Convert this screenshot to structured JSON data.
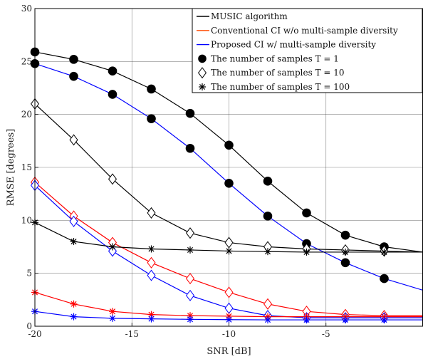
{
  "chart_data": {
    "type": "line",
    "xlabel": "SNR [dB]",
    "ylabel": "RMSE [degrees]",
    "xlim": [
      -20,
      0
    ],
    "ylim": [
      0,
      30
    ],
    "xticks": [
      -20,
      -15,
      -10,
      -5
    ],
    "yticks": [
      0,
      5,
      10,
      15,
      20,
      25,
      30
    ],
    "grid": true,
    "legend_position": "top-right",
    "x": [
      -20,
      -18,
      -16,
      -14,
      -12,
      -10,
      -8,
      -6,
      -4,
      -2,
      0
    ],
    "series": [
      {
        "method": "MUSIC algorithm",
        "samples": "T = 1",
        "color": "#000000",
        "values": [
          25.9,
          25.2,
          24.1,
          22.4,
          20.1,
          17.1,
          13.7,
          10.7,
          8.6,
          7.5,
          7.0
        ]
      },
      {
        "method": "Proposed CI w/ multi-sample diversity",
        "samples": "T = 1",
        "color": "#0000ff",
        "values": [
          24.8,
          23.6,
          21.9,
          19.6,
          16.8,
          13.5,
          10.4,
          7.8,
          6.0,
          4.5,
          3.4
        ]
      },
      {
        "method": "MUSIC algorithm",
        "samples": "T = 10",
        "color": "#000000",
        "values": [
          21.0,
          17.6,
          13.9,
          10.7,
          8.8,
          7.9,
          7.5,
          7.3,
          7.2,
          7.1,
          7.0
        ]
      },
      {
        "method": "Conventional CI w/o multi-sample diversity",
        "samples": "T = 10",
        "color": "#ff0000",
        "values": [
          13.6,
          10.4,
          7.9,
          6.0,
          4.5,
          3.2,
          2.1,
          1.4,
          1.1,
          1.0,
          1.0
        ]
      },
      {
        "method": "Proposed CI w/ multi-sample diversity",
        "samples": "T = 10",
        "color": "#0000ff",
        "values": [
          13.3,
          9.9,
          7.1,
          4.8,
          2.9,
          1.7,
          1.0,
          0.8,
          0.8,
          0.8,
          0.8
        ]
      },
      {
        "method": "MUSIC algorithm",
        "samples": "T = 100",
        "color": "#000000",
        "values": [
          9.8,
          8.0,
          7.5,
          7.3,
          7.2,
          7.1,
          7.05,
          7.0,
          7.0,
          7.0,
          7.0
        ]
      },
      {
        "method": "Conventional CI w/o multi-sample diversity",
        "samples": "T = 100",
        "color": "#ff0000",
        "values": [
          3.2,
          2.1,
          1.4,
          1.1,
          1.0,
          0.95,
          0.9,
          0.9,
          0.9,
          0.9,
          0.9
        ]
      },
      {
        "method": "Proposed CI w/ multi-sample diversity",
        "samples": "T = 100",
        "color": "#0000ff",
        "values": [
          1.4,
          0.9,
          0.75,
          0.7,
          0.65,
          0.62,
          0.6,
          0.6,
          0.6,
          0.6,
          0.6
        ]
      }
    ],
    "legend": [
      {
        "label": "MUSIC algorithm",
        "kind": "line",
        "color": "#000000"
      },
      {
        "label": "Conventional CI w/o multi-sample diversity",
        "kind": "line",
        "color": "#ff4a00"
      },
      {
        "label": "Proposed CI w/ multi-sample diversity",
        "kind": "line",
        "color": "#0000ff"
      },
      {
        "label": "The number of samples T = 1",
        "kind": "marker",
        "marker": "circle"
      },
      {
        "label": "The number of samples T = 10",
        "kind": "marker",
        "marker": "diamond"
      },
      {
        "label": "The number of samples T = 100",
        "kind": "marker",
        "marker": "asterisk"
      }
    ],
    "sample_markers": {
      "T = 1": "circle",
      "T = 10": "diamond",
      "T = 100": "asterisk"
    }
  }
}
